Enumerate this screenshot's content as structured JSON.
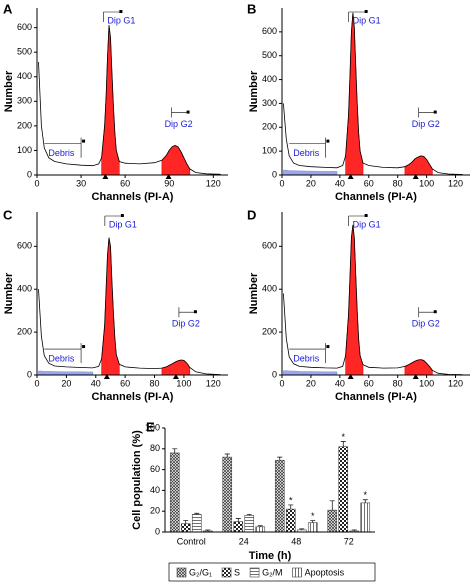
{
  "chart_data": [
    {
      "type": "area",
      "label": "A",
      "xlabel": "Channels (PI-A)",
      "ylabel": "Number",
      "annotations": {
        "g1": "Dip G1",
        "g2": "Dip G2",
        "debris": "Debris"
      },
      "xlim": [
        0,
        130
      ],
      "xticks": [
        0,
        30,
        60,
        90,
        120
      ],
      "ylim": [
        0,
        680
      ],
      "yticks": [
        0,
        100,
        200,
        300,
        400,
        500,
        600
      ],
      "x": [
        1,
        3,
        5,
        8,
        12,
        20,
        30,
        38,
        42,
        44,
        46,
        47,
        48,
        49,
        50,
        51,
        52,
        53,
        54,
        56,
        60,
        70,
        80,
        85,
        88,
        90,
        92,
        94,
        96,
        98,
        100,
        102,
        104,
        108,
        115,
        125
      ],
      "series": [
        {
          "color": "#ff0000",
          "fill": true,
          "values": [
            null,
            null,
            null,
            null,
            null,
            null,
            null,
            null,
            null,
            70,
            200,
            320,
            480,
            610,
            560,
            420,
            280,
            170,
            100,
            55,
            null,
            null,
            null,
            60,
            80,
            100,
            115,
            120,
            115,
            95,
            70,
            45,
            25,
            null,
            null,
            null
          ]
        },
        {
          "color": "#000000",
          "fill": false,
          "values": [
            460,
            200,
            110,
            70,
            55,
            45,
            40,
            38,
            45,
            70,
            200,
            320,
            480,
            610,
            560,
            420,
            280,
            170,
            100,
            55,
            48,
            45,
            50,
            60,
            80,
            100,
            115,
            120,
            115,
            95,
            70,
            45,
            25,
            10,
            5,
            3
          ]
        }
      ]
    },
    {
      "type": "area",
      "label": "B",
      "xlabel": "Channels (PI-A)",
      "ylabel": "Number",
      "annotations": {
        "g1": "Dip G1",
        "g2": "Dip G2",
        "debris": "Debris"
      },
      "xlim": [
        0,
        130
      ],
      "xticks": [
        0,
        20,
        40,
        60,
        80,
        100,
        120
      ],
      "ylim": [
        0,
        700
      ],
      "yticks": [
        0,
        100,
        200,
        300,
        400,
        500,
        600
      ],
      "x": [
        1,
        3,
        5,
        8,
        12,
        20,
        30,
        38,
        42,
        44,
        46,
        47,
        48,
        49,
        50,
        51,
        52,
        53,
        54,
        56,
        60,
        70,
        80,
        85,
        88,
        90,
        92,
        94,
        96,
        98,
        100,
        102,
        104,
        108,
        115,
        125
      ],
      "series": [
        {
          "color": "#8c96e6",
          "fill": true,
          "values": [
            20,
            20,
            18,
            18,
            17,
            16,
            15,
            15,
            null,
            null,
            null,
            null,
            null,
            null,
            null,
            null,
            null,
            null,
            null,
            null,
            null,
            null,
            null,
            null,
            null,
            null,
            null,
            null,
            null,
            null,
            null,
            null,
            null,
            null,
            null,
            null
          ]
        },
        {
          "color": "#ff0000",
          "fill": true,
          "values": [
            null,
            null,
            null,
            null,
            null,
            null,
            null,
            null,
            null,
            80,
            250,
            420,
            600,
            680,
            620,
            450,
            300,
            180,
            100,
            50,
            null,
            null,
            null,
            35,
            45,
            55,
            68,
            75,
            80,
            78,
            65,
            45,
            25,
            null,
            null,
            null
          ]
        },
        {
          "color": "#000000",
          "fill": false,
          "values": [
            300,
            150,
            80,
            50,
            40,
            35,
            32,
            30,
            40,
            80,
            250,
            420,
            600,
            680,
            620,
            450,
            300,
            180,
            100,
            50,
            40,
            32,
            30,
            35,
            45,
            55,
            68,
            75,
            80,
            78,
            65,
            45,
            25,
            10,
            4,
            2
          ]
        }
      ]
    },
    {
      "type": "area",
      "label": "C",
      "xlabel": "Channels (PI-A)",
      "ylabel": "Number",
      "annotations": {
        "g1": "Dip G1",
        "g2": "Dip G2",
        "debris": "Debris"
      },
      "xlim": [
        0,
        130
      ],
      "xticks": [
        0,
        20,
        40,
        60,
        80,
        100,
        120
      ],
      "ylim": [
        0,
        760
      ],
      "yticks": [
        0,
        200,
        400,
        600
      ],
      "x": [
        1,
        3,
        5,
        8,
        12,
        20,
        30,
        38,
        42,
        44,
        46,
        47,
        48,
        49,
        50,
        51,
        52,
        53,
        54,
        56,
        60,
        70,
        80,
        85,
        88,
        90,
        92,
        94,
        96,
        98,
        100,
        102,
        104,
        108,
        115,
        125
      ],
      "series": [
        {
          "color": "#8c96e6",
          "fill": true,
          "values": [
            18,
            18,
            17,
            17,
            16,
            15,
            15,
            14,
            null,
            null,
            null,
            null,
            null,
            null,
            null,
            null,
            null,
            null,
            null,
            null,
            null,
            null,
            null,
            null,
            null,
            null,
            null,
            null,
            null,
            null,
            null,
            null,
            null,
            null,
            null,
            null
          ]
        },
        {
          "color": "#ff0000",
          "fill": true,
          "values": [
            null,
            null,
            null,
            null,
            null,
            null,
            null,
            null,
            null,
            75,
            230,
            400,
            560,
            640,
            600,
            440,
            290,
            170,
            95,
            50,
            null,
            null,
            null,
            32,
            38,
            45,
            52,
            60,
            66,
            70,
            68,
            55,
            35,
            null,
            null,
            null
          ]
        },
        {
          "color": "#000000",
          "fill": false,
          "values": [
            400,
            180,
            90,
            55,
            42,
            38,
            35,
            33,
            40,
            75,
            230,
            400,
            560,
            640,
            600,
            440,
            290,
            170,
            95,
            50,
            38,
            32,
            30,
            32,
            38,
            45,
            52,
            60,
            66,
            70,
            68,
            55,
            35,
            15,
            5,
            2
          ]
        }
      ]
    },
    {
      "type": "area",
      "label": "D",
      "xlabel": "Channels (PI-A)",
      "ylabel": "Number",
      "annotations": {
        "g1": "Dip G1",
        "g2": "Dip G2",
        "debris": "Debris"
      },
      "xlim": [
        0,
        130
      ],
      "xticks": [
        0,
        20,
        40,
        60,
        80,
        100,
        120
      ],
      "ylim": [
        0,
        760
      ],
      "yticks": [
        0,
        200,
        400,
        600
      ],
      "x": [
        1,
        3,
        5,
        8,
        12,
        20,
        30,
        38,
        42,
        44,
        46,
        47,
        48,
        49,
        50,
        51,
        52,
        53,
        54,
        56,
        60,
        70,
        80,
        85,
        88,
        90,
        92,
        94,
        96,
        98,
        100,
        102,
        104,
        108,
        115,
        125
      ],
      "series": [
        {
          "color": "#8c96e6",
          "fill": true,
          "values": [
            20,
            20,
            19,
            18,
            17,
            16,
            15,
            15,
            null,
            null,
            null,
            null,
            null,
            null,
            null,
            null,
            null,
            null,
            null,
            null,
            null,
            null,
            null,
            null,
            null,
            null,
            null,
            null,
            null,
            null,
            null,
            null,
            null,
            null,
            null,
            null
          ]
        },
        {
          "color": "#ff0000",
          "fill": true,
          "values": [
            null,
            null,
            null,
            null,
            null,
            null,
            null,
            null,
            null,
            90,
            280,
            460,
            640,
            700,
            640,
            460,
            300,
            170,
            90,
            48,
            null,
            null,
            null,
            40,
            50,
            58,
            65,
            70,
            72,
            68,
            55,
            40,
            22,
            null,
            null,
            null
          ]
        },
        {
          "color": "#000000",
          "fill": false,
          "values": [
            380,
            170,
            85,
            52,
            40,
            36,
            33,
            32,
            40,
            90,
            280,
            460,
            640,
            700,
            640,
            460,
            300,
            170,
            90,
            48,
            36,
            32,
            33,
            40,
            50,
            58,
            65,
            70,
            72,
            68,
            55,
            40,
            22,
            8,
            3,
            2
          ]
        }
      ]
    },
    {
      "type": "bar",
      "label": "E",
      "xlabel": "Time (h)",
      "ylabel": "Cell population (%)",
      "categories": [
        "Control",
        "24",
        "48",
        "72"
      ],
      "ylim": [
        0,
        100
      ],
      "yticks": [
        0,
        20,
        40,
        60,
        80,
        100
      ],
      "series": [
        {
          "name": "G₂/G₁",
          "color": "#444444",
          "pattern": "crosshatch",
          "values": [
            76,
            72,
            69,
            21
          ],
          "errors": [
            4,
            3,
            3,
            9
          ],
          "flags": [
            null,
            null,
            null,
            null
          ]
        },
        {
          "name": "S",
          "color": "#444444",
          "pattern": "checker",
          "values": [
            8,
            10,
            22,
            82
          ],
          "errors": [
            3,
            3,
            4,
            5
          ],
          "flags": [
            null,
            null,
            "*",
            "*"
          ]
        },
        {
          "name": "G₂/M",
          "color": "#444444",
          "pattern": "hlines",
          "values": [
            17,
            16,
            2,
            1
          ],
          "errors": [
            1,
            1,
            1,
            1
          ],
          "flags": [
            null,
            null,
            null,
            null
          ]
        },
        {
          "name": "Apoptosis",
          "color": "#444444",
          "pattern": "vlines",
          "values": [
            1,
            5,
            9,
            28
          ],
          "errors": [
            1,
            1,
            2,
            3
          ],
          "flags": [
            null,
            null,
            "*",
            "*"
          ]
        }
      ]
    }
  ]
}
